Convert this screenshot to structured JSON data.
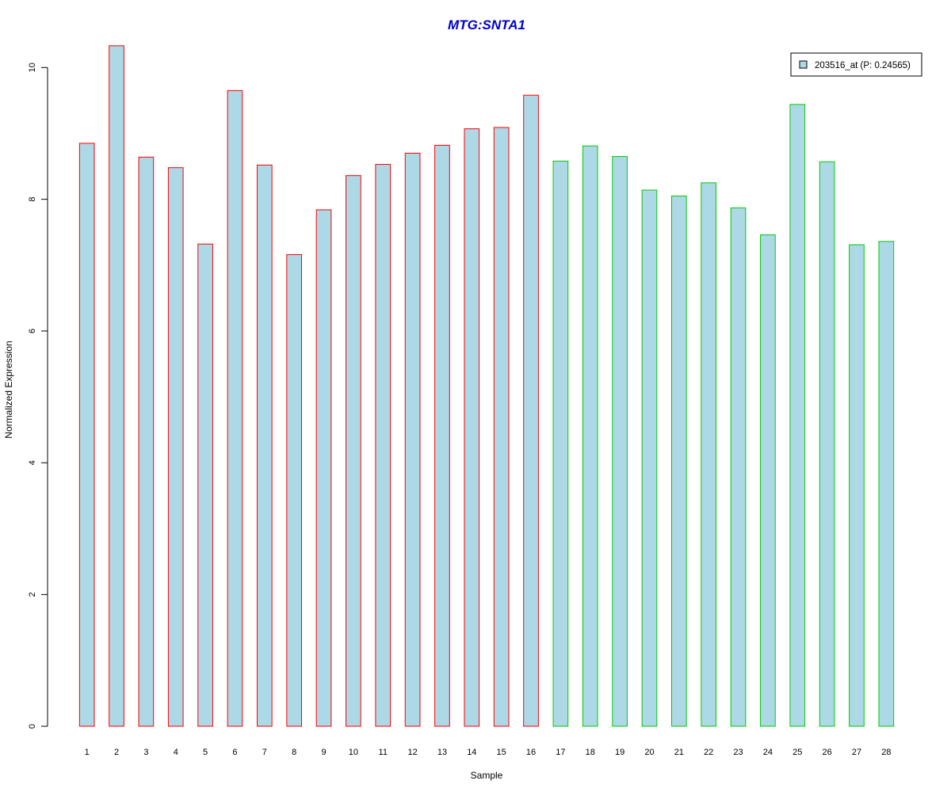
{
  "chart_data": {
    "type": "bar",
    "title": "MTG:SNTA1",
    "title_color": "#0000CC",
    "xlabel": "Sample",
    "ylabel": "Normalized Expression",
    "ylim": [
      0,
      10.4
    ],
    "yticks": [
      0,
      2,
      4,
      6,
      8,
      10
    ],
    "categories": [
      "1",
      "2",
      "3",
      "4",
      "5",
      "6",
      "7",
      "8",
      "9",
      "10",
      "11",
      "12",
      "13",
      "14",
      "15",
      "16",
      "17",
      "18",
      "19",
      "20",
      "21",
      "22",
      "23",
      "24",
      "25",
      "26",
      "27",
      "28"
    ],
    "values": [
      8.85,
      10.33,
      8.64,
      8.48,
      7.32,
      9.65,
      8.52,
      7.16,
      7.84,
      8.36,
      8.53,
      8.7,
      8.82,
      9.07,
      9.09,
      9.58,
      8.58,
      8.81,
      8.65,
      8.14,
      8.05,
      8.25,
      7.87,
      7.46,
      9.44,
      8.57,
      7.31,
      7.36
    ],
    "bar_fill": "#ADD8E6",
    "group_border_colors": {
      "group1": "#FF0000",
      "group2": "#00CC00"
    },
    "group_assignment": [
      "group1",
      "group1",
      "group1",
      "group1",
      "group1",
      "group1",
      "group1",
      "group1",
      "group1",
      "group1",
      "group1",
      "group1",
      "group1",
      "group1",
      "group1",
      "group1",
      "group2",
      "group2",
      "group2",
      "group2",
      "group2",
      "group2",
      "group2",
      "group2",
      "group2",
      "group2",
      "group2",
      "group2"
    ],
    "legend": {
      "label": "203516_at (P: 0.24565)",
      "placement": "top-right"
    },
    "grid": false
  }
}
